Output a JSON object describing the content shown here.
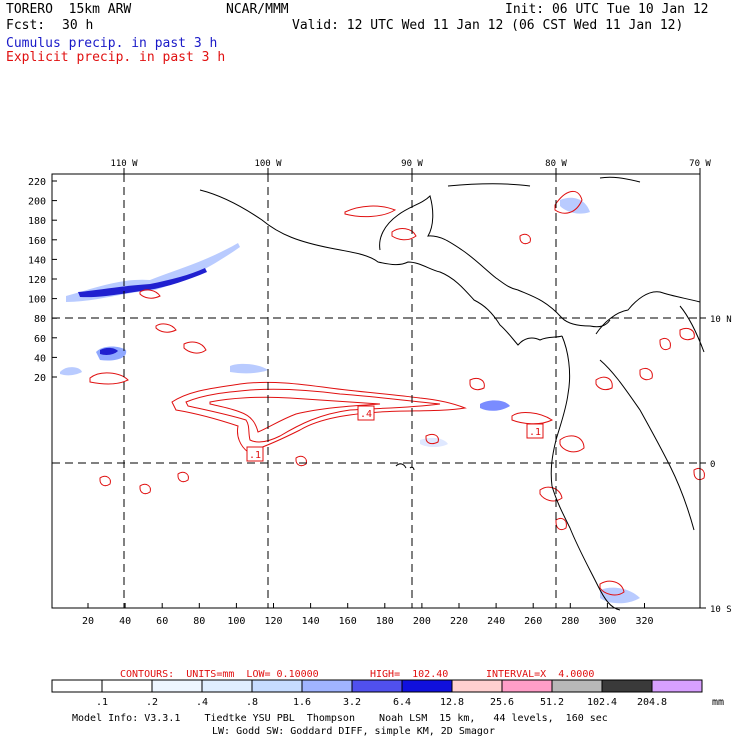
{
  "header": {
    "model": "TORERO  15km ARW",
    "org": "NCAR/MMM",
    "init": "Init: 06 UTC Tue 10 Jan 12",
    "fcst_label": "Fcst:",
    "fcst_value": "30 h",
    "valid": "Valid: 12 UTC Wed 11 Jan 12 (06 CST Wed 11 Jan 12)",
    "line1": "Cumulus precip. in past 3 h",
    "line2": "Explicit precip. in past 3 h"
  },
  "map": {
    "lon_labels": [
      "110 W",
      "100 W",
      "90 W",
      "80 W",
      "70 W"
    ],
    "lat_labels": [
      "10 N",
      "0",
      "10 S"
    ],
    "y_ticks": [
      "220",
      "200",
      "180",
      "160",
      "140",
      "120",
      "100",
      "80",
      "60",
      "40",
      "20"
    ],
    "x_ticks": [
      "20",
      "40",
      "60",
      "80",
      "100",
      "120",
      "140",
      "160",
      "180",
      "200",
      "220",
      "240",
      "260",
      "280",
      "300",
      "320"
    ],
    "contour_labels": [
      ".1",
      ".4",
      ".1"
    ],
    "colors": {
      "explicit": "#e01010",
      "cumulus_light": "#9fb8ff",
      "cumulus_dark": "#1414c8",
      "coast": "#000000"
    }
  },
  "contours_info": {
    "units": "CONTOURS:  UNITS=mm  LOW= 0.10000",
    "high": "HIGH=  102.40",
    "interval": "INTERVAL=X  4.0000"
  },
  "colorbar": {
    "labels": [
      ".1",
      ".2",
      ".4",
      ".8",
      "1.6",
      "3.2",
      "6.4",
      "12.8",
      "25.6",
      "51.2",
      "102.4",
      "204.8"
    ],
    "unit": "mm",
    "colors": [
      "#ffffff",
      "#ffffff",
      "#eef6ff",
      "#dfeeff",
      "#c6dcff",
      "#a0b4ff",
      "#7a80ff",
      "#5050ee",
      "#1010dd",
      "#ffd0d0",
      "#ff9ec8",
      "#ff80b0",
      "#b8b8b8",
      "#3a3a3a",
      "#d8a0ff"
    ]
  },
  "footer": {
    "line1": "Model Info: V3.3.1    Tiedtke YSU PBL  Thompson    Noah LSM  15 km,   44 levels,  160 sec",
    "line2": "LW: Godd SW: Goddard DIFF, simple KM, 2D Smagor"
  }
}
